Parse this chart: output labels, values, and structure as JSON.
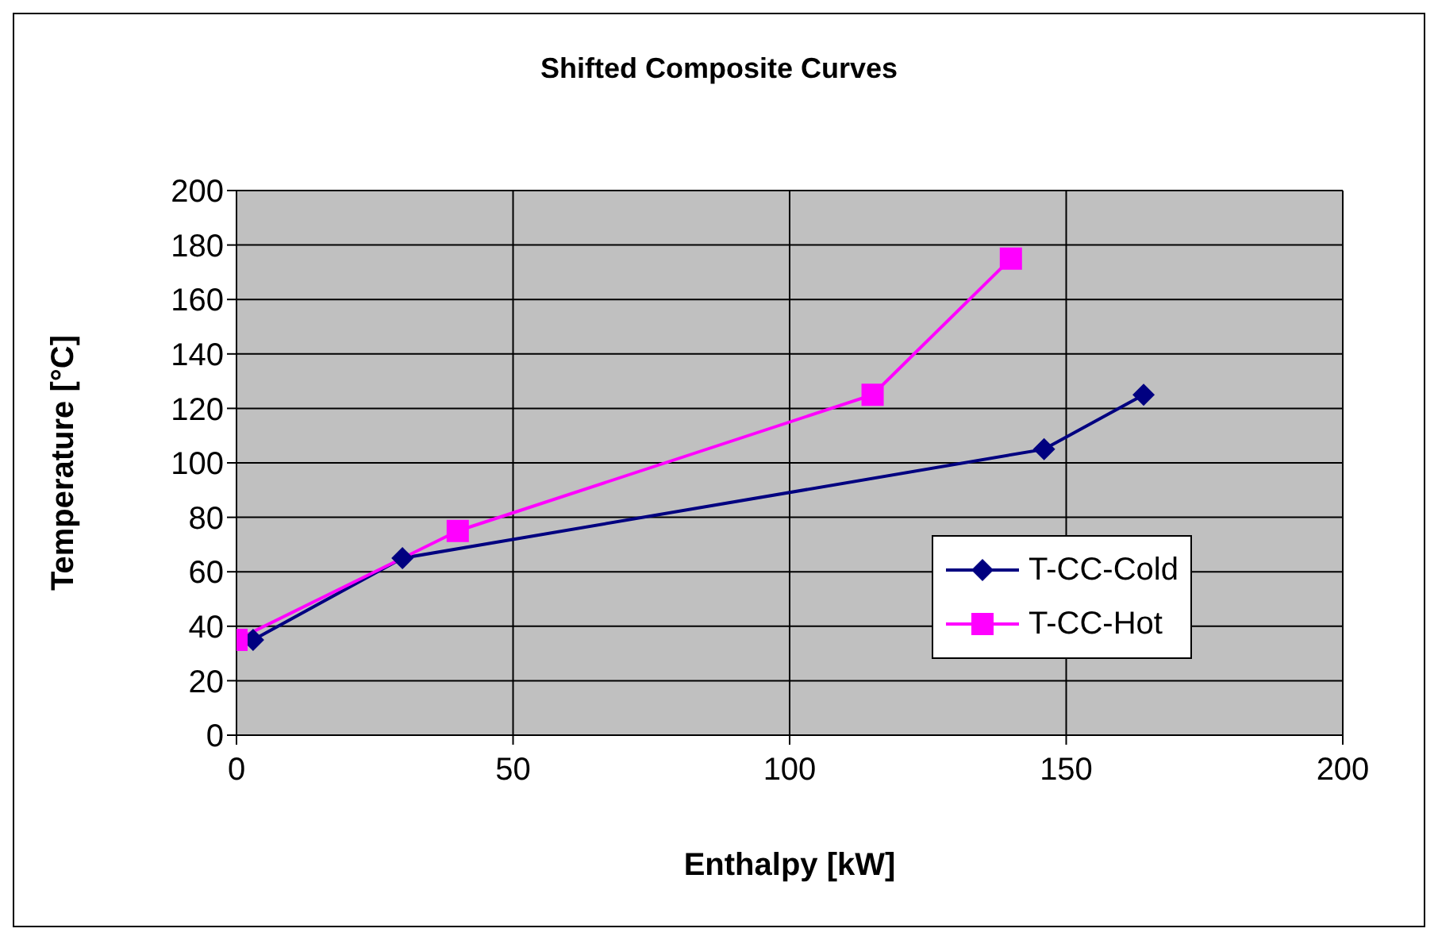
{
  "chart_data": {
    "type": "line",
    "title": "Shifted Composite Curves",
    "xlabel": "Enthalpy [kW]",
    "ylabel": "Temperature [°C]",
    "xlim": [
      0,
      200
    ],
    "xticks": [
      0,
      50,
      100,
      150,
      200
    ],
    "ylim": [
      0,
      200
    ],
    "yticks": [
      0,
      20,
      40,
      60,
      80,
      100,
      120,
      140,
      160,
      180,
      200
    ],
    "grid": true,
    "legend": "right",
    "series": [
      {
        "name": "T-CC-Cold",
        "color": "#000080",
        "marker": "diamond",
        "x": [
          3,
          30,
          146,
          164
        ],
        "values": [
          35,
          65,
          105,
          125
        ]
      },
      {
        "name": "T-CC-Hot",
        "color": "#ff00ff",
        "marker": "square",
        "x": [
          0,
          40,
          115,
          140
        ],
        "values": [
          35,
          75,
          125,
          175
        ]
      }
    ]
  }
}
